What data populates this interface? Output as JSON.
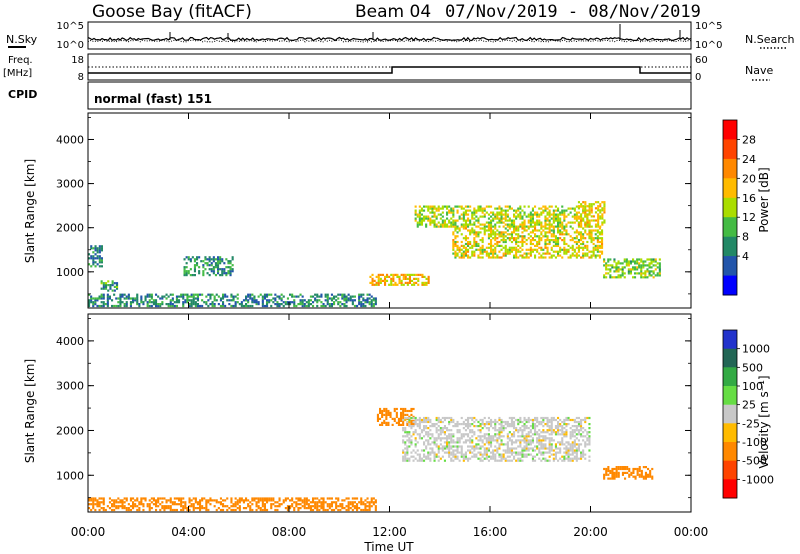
{
  "header": {
    "station": "Goose Bay (fitACF)",
    "beam": "Beam 04",
    "date_range": "07/Nov/2019 - 08/Nov/2019"
  },
  "noise_panel": {
    "left_label": "N.Sky",
    "right_label": "N.Search",
    "left_ticks": [
      "10^5",
      "10^0"
    ],
    "right_ticks": [
      "10^5",
      "10^0"
    ]
  },
  "freq_panel": {
    "left_label_1": "Freq.",
    "left_label_2": "[MHz]",
    "right_label": "Nave",
    "left_ticks": [
      "18",
      "8"
    ],
    "right_ticks": [
      "60",
      "0"
    ]
  },
  "cpid": {
    "label": "CPID",
    "value": "normal (fast) 151"
  },
  "power_panel": {
    "ylabel": "Slant Range [km]",
    "yticks": [
      "4000",
      "3000",
      "2000",
      "1000"
    ],
    "colorbar_label": "Power [dB]",
    "colorbar_ticks": [
      "28",
      "24",
      "20",
      "16",
      "12",
      "8",
      "4"
    ],
    "colorbar_colors": [
      "#ff0000",
      "#ff4400",
      "#ff8800",
      "#ffbb00",
      "#aadd00",
      "#44bb44",
      "#228866",
      "#2255aa",
      "#0000ff"
    ]
  },
  "velocity_panel": {
    "ylabel": "Slant Range [km]",
    "yticks": [
      "4000",
      "3000",
      "2000",
      "1000"
    ],
    "colorbar_label": "Velocity [m s⁻¹]",
    "colorbar_ticks": [
      "1000",
      "500",
      "100",
      "25",
      "-25",
      "-100",
      "-500",
      "-1000"
    ],
    "colorbar_colors": [
      "#2233cc",
      "#226655",
      "#33aa44",
      "#66dd44",
      "#c8c8c8",
      "#ffbb00",
      "#ff8800",
      "#ff4400",
      "#ff0000"
    ]
  },
  "xaxis": {
    "label": "Time UT",
    "ticks": [
      "00:00",
      "04:00",
      "08:00",
      "12:00",
      "16:00",
      "20:00",
      "00:00"
    ]
  },
  "chart_data": {
    "type": "heatmap",
    "x_range_hours": [
      0,
      24
    ],
    "y_range_km": [
      180,
      4600
    ],
    "echo_regions_power_db": [
      {
        "t": [
          0.0,
          11.5
        ],
        "r": [
          200,
          500
        ],
        "power": 10
      },
      {
        "t": [
          0.0,
          0.6
        ],
        "r": [
          1100,
          1600
        ],
        "power": 9
      },
      {
        "t": [
          0.5,
          1.2
        ],
        "r": [
          550,
          800
        ],
        "power": 12
      },
      {
        "t": [
          3.8,
          5.8
        ],
        "r": [
          900,
          1350
        ],
        "power": 11
      },
      {
        "t": [
          11.2,
          13.6
        ],
        "r": [
          680,
          950
        ],
        "power": 22
      },
      {
        "t": [
          13.0,
          20.0
        ],
        "r": [
          2000,
          2500
        ],
        "power": 18
      },
      {
        "t": [
          14.5,
          20.5
        ],
        "r": [
          1300,
          2000
        ],
        "power": 20
      },
      {
        "t": [
          19.5,
          20.6
        ],
        "r": [
          2000,
          2600
        ],
        "power": 21
      },
      {
        "t": [
          20.5,
          22.8
        ],
        "r": [
          850,
          1300
        ],
        "power": 16
      }
    ],
    "echo_regions_velocity_ms": [
      {
        "t": [
          0.0,
          11.5
        ],
        "r": [
          200,
          500
        ],
        "velocity": -150
      },
      {
        "t": [
          11.5,
          13.0
        ],
        "r": [
          2100,
          2500
        ],
        "velocity": -300
      },
      {
        "t": [
          12.5,
          20.0
        ],
        "r": [
          1300,
          2300
        ],
        "velocity": 0
      },
      {
        "t": [
          20.5,
          22.5
        ],
        "r": [
          900,
          1200
        ],
        "velocity": -150
      }
    ],
    "freq_mhz_start": 10.5,
    "freq_mhz_end": 10.9,
    "nave_step_time_h": 12.0
  }
}
